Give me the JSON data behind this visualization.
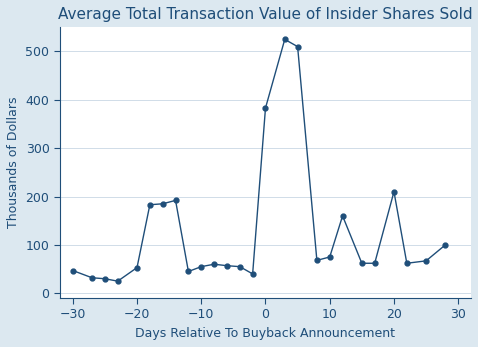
{
  "x": [
    -30,
    -27,
    -25,
    -23,
    -20,
    -18,
    -16,
    -14,
    -12,
    -10,
    -8,
    -6,
    -4,
    -2,
    0,
    3,
    5,
    8,
    10,
    12,
    15,
    17,
    20,
    22,
    25,
    28
  ],
  "y": [
    47,
    32,
    30,
    25,
    53,
    183,
    185,
    192,
    45,
    55,
    60,
    57,
    55,
    40,
    383,
    525,
    510,
    68,
    75,
    160,
    62,
    62,
    210,
    62,
    67,
    100
  ],
  "title": "Average Total Transaction Value of Insider Shares Sold",
  "xlabel": "Days Relative To Buyback Announcement",
  "ylabel": "Thousands of Dollars",
  "xlim": [
    -32,
    32
  ],
  "ylim": [
    -10,
    550
  ],
  "yticks": [
    0,
    100,
    200,
    300,
    400,
    500
  ],
  "xticks": [
    -30,
    -20,
    -10,
    0,
    10,
    20,
    30
  ],
  "line_color": "#1f4e79",
  "marker": "o",
  "markersize": 3.5,
  "linewidth": 1.0,
  "background_color": "#dce8f0",
  "plot_background": "#ffffff",
  "grid_color": "#d0dce8",
  "title_color": "#1f4e79",
  "label_color": "#1f4e79",
  "tick_color": "#1f4e79",
  "title_fontsize": 11,
  "label_fontsize": 9,
  "tick_fontsize": 9
}
